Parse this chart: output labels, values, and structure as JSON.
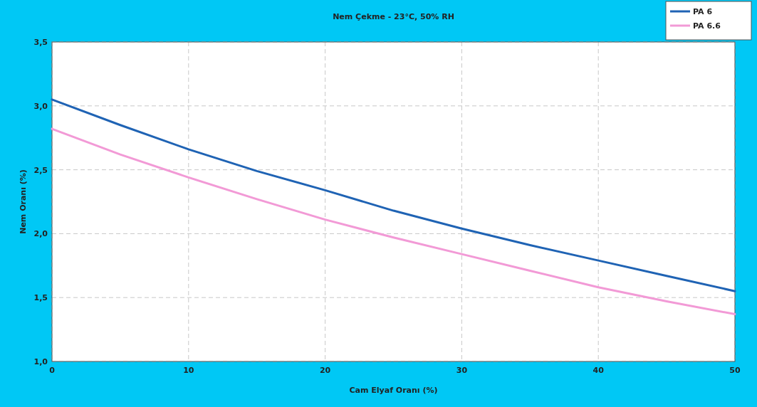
{
  "chart_data": {
    "type": "line",
    "title": "Nem Çekme - 23°C, 50% RH",
    "xlabel": "Cam Elyaf Oranı (%)",
    "ylabel": "Nem Oranı (%)",
    "x": [
      0,
      5,
      10,
      15,
      20,
      25,
      30,
      35,
      40,
      45,
      50
    ],
    "series": [
      {
        "name": "PA 6",
        "color": "#1f63b4",
        "values": [
          3.05,
          2.85,
          2.66,
          2.49,
          2.34,
          2.18,
          2.04,
          1.91,
          1.79,
          1.67,
          1.55
        ]
      },
      {
        "name": "PA 6.6",
        "color": "#f29ad6",
        "values": [
          2.82,
          2.62,
          2.44,
          2.27,
          2.11,
          1.97,
          1.84,
          1.71,
          1.58,
          1.47,
          1.37
        ]
      }
    ],
    "xlim": [
      0,
      50
    ],
    "xticks": [
      0,
      10,
      20,
      30,
      40,
      50
    ],
    "ylim": [
      1,
      3.5
    ],
    "yticks": [
      {
        "value": 1,
        "label": "1,0"
      },
      {
        "value": 1.5,
        "label": "1,5"
      },
      {
        "value": 2,
        "label": "2,0"
      },
      {
        "value": 2.5,
        "label": "2,5"
      },
      {
        "value": 3,
        "label": "3,0"
      },
      {
        "value": 3.5,
        "label": "3,5"
      }
    ],
    "grid": true,
    "legend": "top right",
    "marker": "none",
    "line_style": "solid"
  }
}
